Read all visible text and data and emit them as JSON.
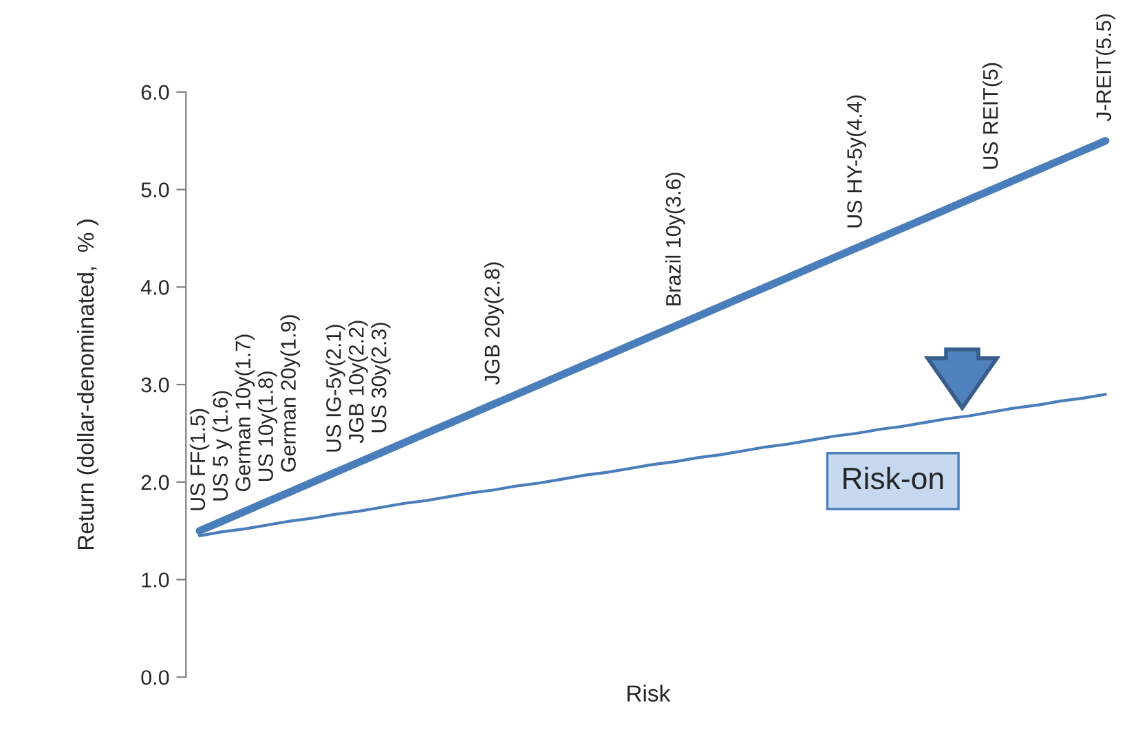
{
  "chart_data": {
    "type": "line",
    "xlabel": "Risk",
    "ylabel": "Return (dollar-denominated,  % )",
    "categories": [
      null,
      null,
      null,
      null,
      null,
      null,
      null,
      null,
      null,
      null,
      null,
      null,
      null,
      null,
      null,
      null,
      null,
      null,
      null,
      null,
      null,
      null,
      null,
      null,
      null,
      null,
      null,
      null,
      null,
      null,
      null,
      null,
      null,
      null,
      null,
      null,
      null,
      null,
      null,
      null,
      null
    ],
    "series": [
      {
        "color": "#4a7ebb",
        "values": [
          1.5,
          1.6,
          1.7,
          1.8,
          1.9,
          2.0,
          2.1,
          2.2,
          2.3,
          2.4,
          2.5,
          2.6,
          2.7,
          2.8,
          2.9,
          3.0,
          3.1,
          3.2,
          3.3,
          3.4,
          3.5,
          3.6,
          3.7,
          3.8,
          3.9,
          4.0,
          4.1,
          4.2,
          4.3,
          4.4,
          4.5,
          4.6,
          4.7,
          4.8,
          4.9,
          5.0,
          5.1,
          5.2,
          5.3,
          5.4,
          5.5
        ],
        "value_labels": [
          "US FF(1.5)",
          "US 5 y (1.6)",
          "German 10y(1.7)",
          "US 10y(1.8)",
          "German 20y(1.9)",
          null,
          "US IG-5y(2.1)",
          "JGB 10y(2.2)",
          "US 30y(2.3)",
          null,
          null,
          null,
          null,
          "JGB 20y(2.8)",
          null,
          null,
          null,
          null,
          null,
          null,
          null,
          "Brazil 10y(3.6)",
          null,
          null,
          null,
          null,
          null,
          null,
          null,
          "US HY-5y(4.4)",
          null,
          null,
          null,
          null,
          null,
          "US REIT(5)",
          null,
          null,
          null,
          null,
          "J-REIT(5.5)"
        ]
      },
      {
        "color": "#4a7ebb",
        "values": [
          1.45,
          1.49,
          1.52,
          1.56,
          1.6,
          1.63,
          1.67,
          1.7,
          1.74,
          1.78,
          1.81,
          1.85,
          1.89,
          1.92,
          1.96,
          1.99,
          2.03,
          2.07,
          2.1,
          2.14,
          2.18,
          2.21,
          2.25,
          2.28,
          2.32,
          2.36,
          2.39,
          2.43,
          2.47,
          2.5,
          2.54,
          2.57,
          2.61,
          2.65,
          2.68,
          2.72,
          2.76,
          2.79,
          2.83,
          2.86,
          2.9
        ]
      }
    ],
    "ylim": [
      0,
      6
    ],
    "yticks": [
      {
        "value": 0,
        "label": "0.0"
      },
      {
        "value": 1,
        "label": "1.0"
      },
      {
        "value": 2,
        "label": "2.0"
      },
      {
        "value": 3,
        "label": "3.0"
      },
      {
        "value": 4,
        "label": "4.0"
      },
      {
        "value": 5,
        "label": "5.0"
      },
      {
        "value": 6,
        "label": "6.0"
      }
    ],
    "tick_labels": "y",
    "grid": false,
    "legend": false,
    "annotations": [
      "Risk-on"
    ]
  }
}
